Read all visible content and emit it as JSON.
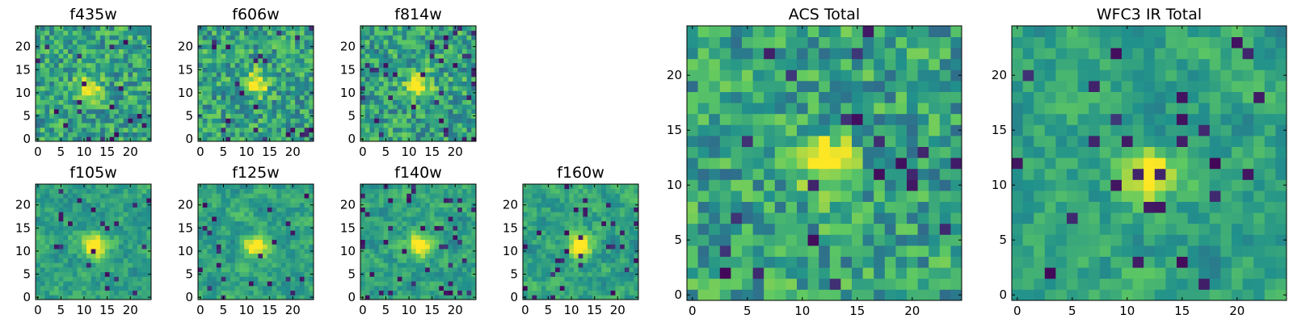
{
  "figure": {
    "colormap": "viridis",
    "colormap_stops": [
      "#440154",
      "#3b528b",
      "#21918c",
      "#5ec962",
      "#fde725"
    ],
    "frame_color": "#000000",
    "background": "#ffffff"
  },
  "chart_data": [
    {
      "type": "heatmap",
      "title": "f435w",
      "grid_size": [
        25,
        25
      ],
      "xlim": [
        0,
        24
      ],
      "ylim": [
        0,
        24
      ],
      "xticks": [
        0,
        5,
        10,
        15,
        20
      ],
      "yticks": [
        0,
        5,
        10,
        15,
        20
      ],
      "source_center": [
        11,
        11
      ],
      "noise": "fine",
      "dark_pixels": 0.04
    },
    {
      "type": "heatmap",
      "title": "f606w",
      "grid_size": [
        25,
        25
      ],
      "xlim": [
        0,
        24
      ],
      "ylim": [
        0,
        24
      ],
      "xticks": [
        0,
        5,
        10,
        15,
        20
      ],
      "yticks": [
        0,
        5,
        10,
        15,
        20
      ],
      "source_center": [
        12,
        12
      ],
      "noise": "fine",
      "dark_pixels": 0.05
    },
    {
      "type": "heatmap",
      "title": "f814w",
      "grid_size": [
        25,
        25
      ],
      "xlim": [
        0,
        24
      ],
      "ylim": [
        0,
        24
      ],
      "xticks": [
        0,
        5,
        10,
        15,
        20
      ],
      "yticks": [
        0,
        5,
        10,
        15,
        20
      ],
      "source_center": [
        12,
        12
      ],
      "noise": "fine",
      "dark_pixels": 0.05
    },
    {
      "type": "heatmap",
      "title": "f105w",
      "grid_size": [
        25,
        25
      ],
      "xlim": [
        0,
        24
      ],
      "ylim": [
        0,
        24
      ],
      "xticks": [
        0,
        5,
        10,
        15,
        20
      ],
      "yticks": [
        0,
        5,
        10,
        15,
        20
      ],
      "source_center": [
        12,
        11
      ],
      "noise": "smooth",
      "dark_pixels": 0.04
    },
    {
      "type": "heatmap",
      "title": "f125w",
      "grid_size": [
        25,
        25
      ],
      "xlim": [
        0,
        24
      ],
      "ylim": [
        0,
        24
      ],
      "xticks": [
        0,
        5,
        10,
        15,
        20
      ],
      "yticks": [
        0,
        5,
        10,
        15,
        20
      ],
      "source_center": [
        12,
        11
      ],
      "noise": "smooth",
      "dark_pixels": 0.04
    },
    {
      "type": "heatmap",
      "title": "f140w",
      "grid_size": [
        25,
        25
      ],
      "xlim": [
        0,
        24
      ],
      "ylim": [
        0,
        24
      ],
      "xticks": [
        0,
        5,
        10,
        15,
        20
      ],
      "yticks": [
        0,
        5,
        10,
        15,
        20
      ],
      "source_center": [
        12,
        11
      ],
      "noise": "smooth",
      "dark_pixels": 0.05
    },
    {
      "type": "heatmap",
      "title": "f160w",
      "grid_size": [
        25,
        25
      ],
      "xlim": [
        0,
        24
      ],
      "ylim": [
        0,
        24
      ],
      "xticks": [
        0,
        5,
        10,
        15,
        20
      ],
      "yticks": [
        0,
        5,
        10,
        15,
        20
      ],
      "source_center": [
        12,
        11
      ],
      "noise": "smooth",
      "dark_pixels": 0.05
    },
    {
      "type": "heatmap",
      "title": "ACS Total",
      "grid_size": [
        25,
        25
      ],
      "xlim": [
        0,
        24
      ],
      "ylim": [
        0,
        24
      ],
      "xticks": [
        0,
        5,
        10,
        15,
        20
      ],
      "yticks": [
        0,
        5,
        10,
        15,
        20
      ],
      "source_center": [
        12,
        12
      ],
      "noise": "fine",
      "dark_pixels": 0.03
    },
    {
      "type": "heatmap",
      "title": "WFC3 IR Total",
      "grid_size": [
        25,
        25
      ],
      "xlim": [
        0,
        24
      ],
      "ylim": [
        0,
        24
      ],
      "xticks": [
        0,
        5,
        10,
        15,
        20
      ],
      "yticks": [
        0,
        5,
        10,
        15,
        20
      ],
      "source_center": [
        12,
        11
      ],
      "noise": "smooth",
      "dark_pixels": 0.04
    }
  ]
}
